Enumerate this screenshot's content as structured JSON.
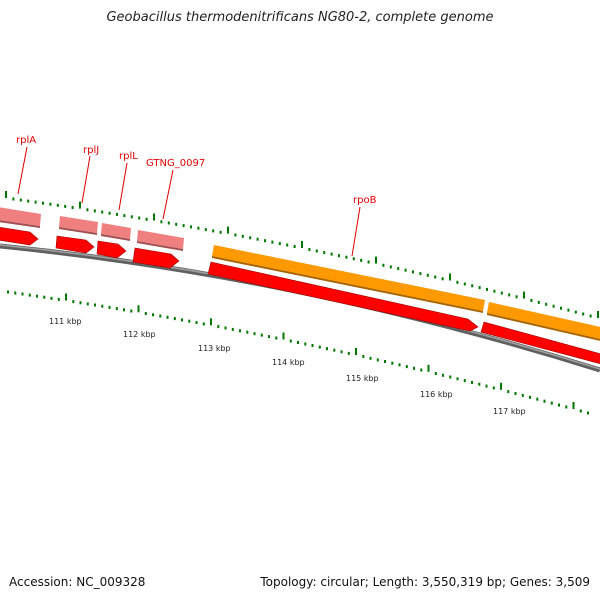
{
  "title": "Geobacillus thermodenitrificans NG80-2, complete genome",
  "footer": {
    "accession": "Accession: NC_009328",
    "summary": "Topology: circular; Length: 3,550,319 bp; Genes: 3,509"
  },
  "colors": {
    "gene_dark": "#ff0000",
    "gene_light": "#f08080",
    "gene_orange": "#ff9900",
    "tick": "#007700",
    "backbone": "#808080",
    "label": "#e00000"
  },
  "scale_labels": [
    "111 kbp",
    "112 kbp",
    "113 kbp",
    "114 kbp",
    "115 kbp",
    "116 kbp",
    "117 kbp"
  ],
  "genes": [
    {
      "name": "rplA"
    },
    {
      "name": "rplJ"
    },
    {
      "name": "rplL"
    },
    {
      "name": "GTNG_0097"
    },
    {
      "name": "rpoB"
    }
  ]
}
